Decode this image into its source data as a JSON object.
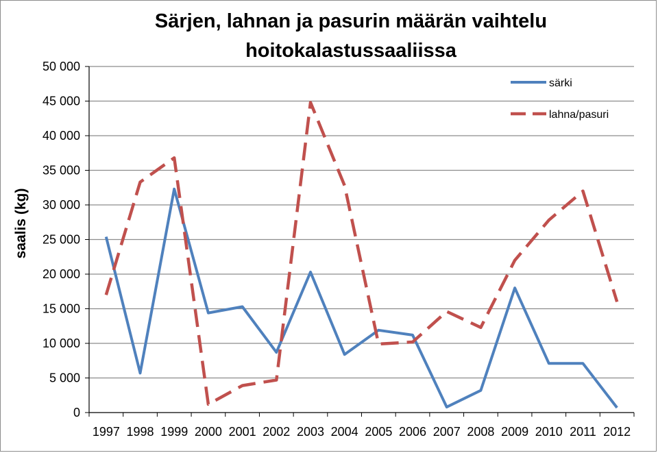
{
  "chart_data": {
    "type": "line",
    "title_lines": [
      "Särjen, lahnan ja pasurin määrän vaihtelu",
      "hoitokalastussaaliissa"
    ],
    "xlabel": "",
    "ylabel": "saalis (kg)",
    "categories": [
      "1997",
      "1998",
      "1999",
      "2000",
      "2001",
      "2002",
      "2003",
      "2004",
      "2005",
      "2006",
      "2007",
      "2008",
      "2009",
      "2010",
      "2011",
      "2012"
    ],
    "y_ticks": [
      0,
      5000,
      10000,
      15000,
      20000,
      25000,
      30000,
      35000,
      40000,
      45000,
      50000
    ],
    "y_tick_labels": [
      "0",
      "5 000",
      "10 000",
      "15 000",
      "20 000",
      "25 000",
      "30 000",
      "35 000",
      "40 000",
      "45 000",
      "50 000"
    ],
    "ylim": [
      0,
      50000
    ],
    "grid": "horizontal",
    "legend_position": "top-right",
    "series": [
      {
        "name": "särki",
        "style": "solid",
        "color": "#4F81BD",
        "values": [
          25400,
          5700,
          32300,
          14400,
          15300,
          8700,
          20300,
          8400,
          11900,
          11200,
          800,
          3200,
          18000,
          7100,
          7100,
          700
        ]
      },
      {
        "name": "lahna/pasuri",
        "style": "dashed",
        "color": "#C0504D",
        "values": [
          17000,
          33300,
          36800,
          1200,
          3900,
          4700,
          44800,
          32800,
          9900,
          10200,
          14600,
          12300,
          22000,
          27800,
          32000,
          16000
        ]
      }
    ]
  }
}
